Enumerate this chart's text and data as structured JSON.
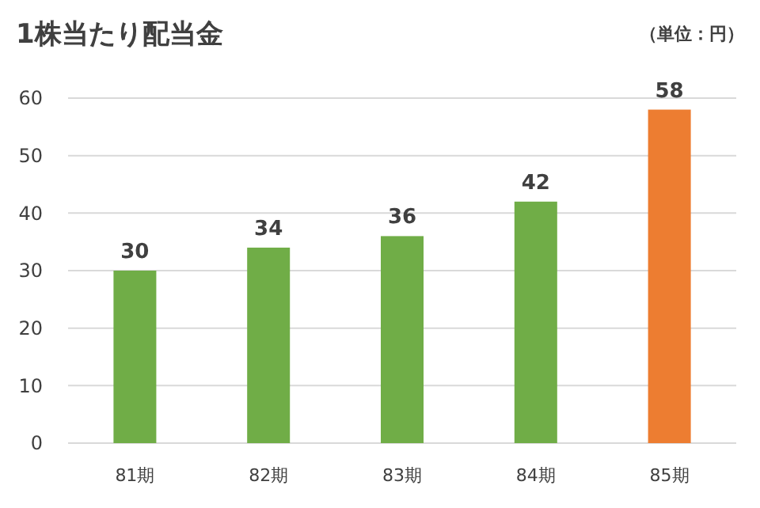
{
  "chart_data": {
    "type": "bar",
    "title": "1株当たり配当金",
    "annotations": [
      "（単位：円）"
    ],
    "categories": [
      "81期",
      "82期",
      "83期",
      "84期",
      "85期"
    ],
    "values": [
      30,
      34,
      36,
      42,
      58
    ],
    "colors": [
      "#70ad47",
      "#70ad47",
      "#70ad47",
      "#70ad47",
      "#ed7d31"
    ],
    "ylim": [
      0,
      60
    ],
    "yticks": [
      0,
      10,
      20,
      30,
      40,
      50,
      60
    ],
    "grid": "y",
    "data_labels": true
  }
}
